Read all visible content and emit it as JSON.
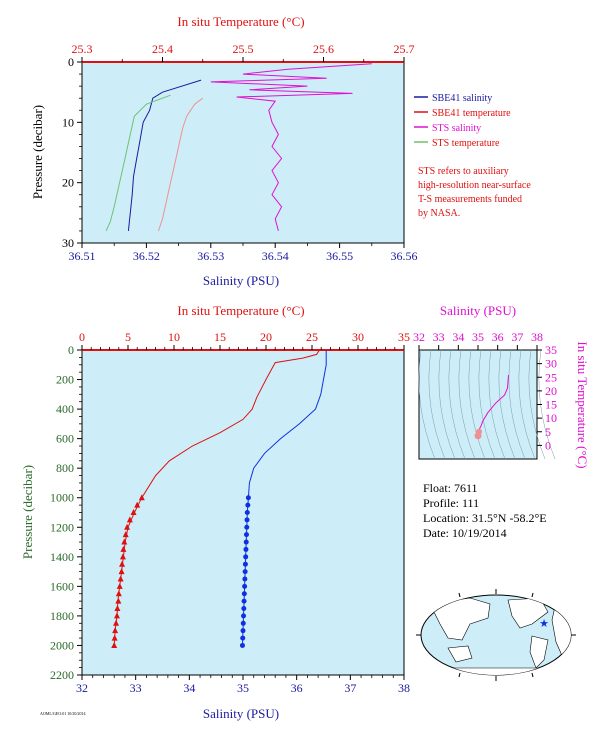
{
  "colors": {
    "navy": "#1a1aa0",
    "red": "#e01010",
    "magenta": "#e010d0",
    "green": "#70c070",
    "pink": "#f09090",
    "blue": "#1030e0",
    "axis_green": "#2a6a2a",
    "panel": "#cdeef8"
  },
  "chart_data": [
    {
      "type": "line",
      "title": "",
      "top_axis_label": "In situ Temperature (°C)",
      "bottom_axis_label": "Salinity (PSU)",
      "ylabel": "Pressure (decibar)",
      "temp_range": [
        25.3,
        25.7
      ],
      "temp_ticks": [
        "25.3",
        "25.4",
        "25.5",
        "25.6",
        "25.7"
      ],
      "sal_range": [
        36.51,
        36.56
      ],
      "sal_ticks": [
        "36.51",
        "36.52",
        "36.53",
        "36.54",
        "36.55",
        "36.56"
      ],
      "pressure_range": [
        0,
        30
      ],
      "pressure_ticks": [
        "0",
        "10",
        "20",
        "30"
      ],
      "legend": {
        "sbe_salinity": "SBE41 salinity",
        "sbe_temperature": "SBE41 temperature",
        "sts_salinity": "STS salinity",
        "sts_temperature": "STS temperature"
      },
      "note_lines": [
        "STS refers to auxiliary",
        "high-resolution near-surface",
        "T-S measurements funded",
        "by NASA."
      ],
      "series": [
        {
          "key": "sbe_salinity",
          "axis": "salinity",
          "color": "#1a1aa0",
          "points": [
            [
              36.5285,
              3
            ],
            [
              36.5225,
              5
            ],
            [
              36.521,
              6
            ],
            [
              36.5205,
              8
            ],
            [
              36.5195,
              10
            ],
            [
              36.519,
              13
            ],
            [
              36.5185,
              16
            ],
            [
              36.518,
              19
            ],
            [
              36.5178,
              22
            ],
            [
              36.5175,
              25
            ],
            [
              36.5172,
              28
            ]
          ]
        },
        {
          "key": "sts_temperature",
          "axis": "temperature",
          "color": "#70c070",
          "points": [
            [
              25.41,
              5.5
            ],
            [
              25.38,
              7
            ],
            [
              25.365,
              9
            ],
            [
              25.36,
              12
            ],
            [
              25.355,
              15
            ],
            [
              25.35,
              18
            ],
            [
              25.345,
              21
            ],
            [
              25.34,
              24
            ],
            [
              25.335,
              26.5
            ],
            [
              25.33,
              28
            ]
          ]
        },
        {
          "key": "sts_temperature_sbe",
          "axis": "temperature",
          "color": "#f09090",
          "points": [
            [
              25.45,
              6
            ],
            [
              25.44,
              7
            ],
            [
              25.43,
              9
            ],
            [
              25.425,
              11
            ],
            [
              25.42,
              14
            ],
            [
              25.415,
              17
            ],
            [
              25.41,
              20
            ],
            [
              25.405,
              23
            ],
            [
              25.4,
              26
            ],
            [
              25.395,
              28
            ]
          ]
        },
        {
          "key": "sts_salinity",
          "axis": "salinity",
          "color": "#e010d0",
          "points": [
            [
              36.555,
              0.3
            ],
            [
              36.542,
              1.2
            ],
            [
              36.535,
              2
            ],
            [
              36.548,
              2.7
            ],
            [
              36.53,
              3.3
            ],
            [
              36.545,
              4
            ],
            [
              36.536,
              4.6
            ],
            [
              36.552,
              5.2
            ],
            [
              36.534,
              5.8
            ],
            [
              36.54,
              6.5
            ],
            [
              36.539,
              8
            ],
            [
              36.5395,
              10
            ],
            [
              36.5405,
              12
            ],
            [
              36.5395,
              14
            ],
            [
              36.541,
              16
            ],
            [
              36.5395,
              18
            ],
            [
              36.5405,
              20
            ],
            [
              36.5395,
              22
            ],
            [
              36.541,
              24
            ],
            [
              36.54,
              26
            ],
            [
              36.5405,
              28
            ]
          ]
        }
      ]
    },
    {
      "type": "line",
      "title": "",
      "top_axis_label": "In situ Temperature (°C)",
      "bottom_axis_label": "Salinity (PSU)",
      "ylabel": "Pressure (decibar)",
      "temp_range": [
        0,
        35
      ],
      "temp_ticks": [
        "0",
        "5",
        "10",
        "15",
        "20",
        "25",
        "30",
        "35"
      ],
      "sal_range": [
        32,
        38
      ],
      "sal_ticks": [
        "32",
        "33",
        "34",
        "35",
        "36",
        "37",
        "38"
      ],
      "pressure_range": [
        0,
        2200
      ],
      "pressure_ticks": [
        "0",
        "200",
        "400",
        "600",
        "800",
        "1000",
        "1200",
        "1400",
        "1600",
        "1800",
        "2000",
        "2200"
      ],
      "series": [
        {
          "key": "temperature",
          "axis": "temperature",
          "color": "#e01010",
          "points": [
            [
              25.8,
              0
            ],
            [
              25.5,
              30
            ],
            [
              24,
              55
            ],
            [
              21,
              85
            ],
            [
              20,
              200
            ],
            [
              19,
              320
            ],
            [
              18.5,
              400
            ],
            [
              17.5,
              470
            ],
            [
              15,
              560
            ],
            [
              12,
              650
            ],
            [
              9.5,
              750
            ],
            [
              8,
              850
            ],
            [
              7,
              950
            ],
            [
              6.5,
              1000
            ],
            [
              5.7,
              1100
            ],
            [
              5.0,
              1200
            ],
            [
              4.7,
              1300
            ],
            [
              4.5,
              1400
            ],
            [
              4.3,
              1500
            ],
            [
              4.1,
              1600
            ],
            [
              3.9,
              1700
            ],
            [
              3.8,
              1800
            ],
            [
              3.6,
              1900
            ],
            [
              3.5,
              2000
            ]
          ]
        },
        {
          "key": "salinity",
          "axis": "salinity",
          "color": "#1030e0",
          "points": [
            [
              36.55,
              0
            ],
            [
              36.55,
              100
            ],
            [
              36.5,
              200
            ],
            [
              36.45,
              300
            ],
            [
              36.35,
              400
            ],
            [
              36.05,
              500
            ],
            [
              35.7,
              600
            ],
            [
              35.4,
              700
            ],
            [
              35.2,
              800
            ],
            [
              35.12,
              900
            ],
            [
              35.1,
              1000
            ],
            [
              35.08,
              1100
            ],
            [
              35.07,
              1200
            ],
            [
              35.06,
              1300
            ],
            [
              35.05,
              1400
            ],
            [
              35.04,
              1500
            ],
            [
              35.03,
              1600
            ],
            [
              35.02,
              1700
            ],
            [
              35.01,
              1800
            ],
            [
              35.0,
              1900
            ],
            [
              34.99,
              2000
            ]
          ]
        }
      ],
      "temp_markers": [
        [
          6.5,
          1000
        ],
        [
          6.0,
          1050
        ],
        [
          5.6,
          1100
        ],
        [
          5.2,
          1150
        ],
        [
          4.9,
          1200
        ],
        [
          4.75,
          1250
        ],
        [
          4.6,
          1300
        ],
        [
          4.5,
          1350
        ],
        [
          4.45,
          1400
        ],
        [
          4.35,
          1450
        ],
        [
          4.3,
          1500
        ],
        [
          4.2,
          1550
        ],
        [
          4.1,
          1600
        ],
        [
          4.0,
          1650
        ],
        [
          3.95,
          1700
        ],
        [
          3.85,
          1750
        ],
        [
          3.8,
          1800
        ],
        [
          3.7,
          1850
        ],
        [
          3.6,
          1900
        ],
        [
          3.55,
          1950
        ],
        [
          3.5,
          2000
        ]
      ],
      "sal_markers": [
        [
          35.1,
          1000
        ],
        [
          35.09,
          1050
        ],
        [
          35.08,
          1100
        ],
        [
          35.075,
          1150
        ],
        [
          35.07,
          1200
        ],
        [
          35.065,
          1250
        ],
        [
          35.06,
          1300
        ],
        [
          35.055,
          1350
        ],
        [
          35.05,
          1400
        ],
        [
          35.045,
          1450
        ],
        [
          35.04,
          1500
        ],
        [
          35.035,
          1550
        ],
        [
          35.03,
          1600
        ],
        [
          35.025,
          1650
        ],
        [
          35.02,
          1700
        ],
        [
          35.015,
          1750
        ],
        [
          35.01,
          1800
        ],
        [
          35.005,
          1850
        ],
        [
          35.0,
          1900
        ],
        [
          34.995,
          1950
        ],
        [
          34.99,
          2000
        ]
      ]
    },
    {
      "type": "line",
      "title": "",
      "top_axis_label": "Salinity (PSU)",
      "right_axis_label": "In situ Temperature (°C)",
      "sal_range": [
        32,
        38
      ],
      "sal_ticks": [
        "32",
        "33",
        "34",
        "35",
        "36",
        "37",
        "38"
      ],
      "temp_range": [
        -5,
        35
      ],
      "temp_ticks": [
        "0",
        "5",
        "10",
        "15",
        "20",
        "25",
        "30",
        "35"
      ],
      "ts_curve": [
        [
          36.55,
          25.8
        ],
        [
          36.5,
          21
        ],
        [
          36.35,
          18.5
        ],
        [
          35.9,
          15.5
        ],
        [
          35.5,
          12
        ],
        [
          35.25,
          9
        ],
        [
          35.15,
          7
        ],
        [
          35.1,
          6.5
        ],
        [
          35.05,
          5
        ],
        [
          35.0,
          3.5
        ]
      ]
    }
  ],
  "float_info": {
    "float_line": "Float: 7611",
    "profile_line": "Profile: 111",
    "location_line": "Location: 31.5°N -58.2°E",
    "date_line": "Date: 10/19/2014"
  },
  "footer_stamp": "AOML/GEO:01 10/20/2014"
}
